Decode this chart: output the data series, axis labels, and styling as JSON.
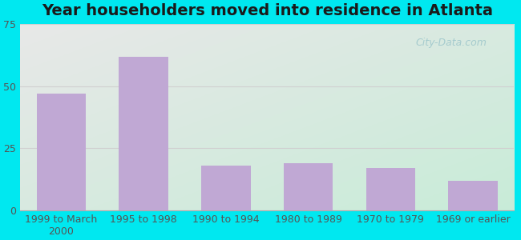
{
  "title": "Year householders moved into residence in Atlanta",
  "categories": [
    "1999 to March\n2000",
    "1995 to 1998",
    "1990 to 1994",
    "1980 to 1989",
    "1970 to 1979",
    "1969 or earlier"
  ],
  "values": [
    47,
    62,
    18,
    19,
    17,
    12
  ],
  "bar_color": "#c0a8d4",
  "ylim": [
    0,
    75
  ],
  "yticks": [
    0,
    25,
    50,
    75
  ],
  "outer_bg_color": "#00e8f0",
  "grid_color": "#d0d0d0",
  "title_fontsize": 14,
  "tick_fontsize": 9,
  "watermark_text": "City-Data.com",
  "watermark_color": "#a0c8cc",
  "bg_top_left": "#e8e8e8",
  "bg_bottom_right": "#c8ecd8"
}
